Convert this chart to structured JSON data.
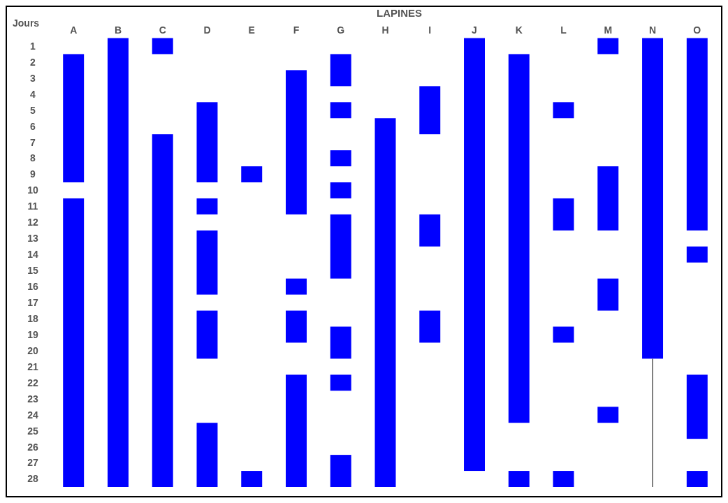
{
  "chart_data": {
    "type": "bar",
    "title": "LAPINES",
    "ylabel": "Jours",
    "categories": [
      "A",
      "B",
      "C",
      "D",
      "E",
      "F",
      "G",
      "H",
      "I",
      "J",
      "K",
      "L",
      "M",
      "N",
      "O"
    ],
    "ylim": [
      28.5,
      0.5
    ],
    "yticks": [
      1,
      2,
      3,
      4,
      5,
      6,
      7,
      8,
      9,
      10,
      11,
      12,
      13,
      14,
      15,
      16,
      17,
      18,
      19,
      20,
      21,
      22,
      23,
      24,
      25,
      26,
      27,
      28
    ],
    "series": [
      {
        "color": "#0000ff",
        "base": [
          1.5,
          0.5,
          0.5,
          4.5,
          8.5,
          2.5,
          1.5,
          5.5,
          3.5,
          0.5,
          1.5,
          4.5,
          0.5,
          0.5,
          0.5
        ],
        "values": [
          8,
          28,
          1,
          5,
          1,
          9,
          2,
          23,
          3,
          27,
          23,
          1,
          1,
          20,
          12
        ]
      },
      {
        "color": "#0000ff",
        "base": [
          10.5,
          null,
          6.5,
          10.5,
          27.5,
          15.5,
          4.5,
          null,
          11.5,
          null,
          27.5,
          10.5,
          8.5,
          null,
          13.5
        ],
        "values": [
          18,
          null,
          22,
          1,
          1,
          1,
          1,
          null,
          2,
          null,
          1,
          2,
          4,
          null,
          1
        ]
      },
      {
        "color": "#0000ff",
        "base": [
          null,
          null,
          null,
          12.5,
          null,
          17.5,
          7.5,
          null,
          17.5,
          null,
          null,
          18.5,
          15.5,
          null,
          21.5
        ],
        "values": [
          null,
          null,
          null,
          4,
          null,
          2,
          1,
          null,
          2,
          null,
          null,
          1,
          2,
          null,
          4
        ]
      },
      {
        "color": "#0000ff",
        "base": [
          null,
          null,
          null,
          17.5,
          null,
          21.5,
          9.5,
          null,
          null,
          null,
          null,
          27.5,
          23.5,
          null,
          27.5
        ],
        "values": [
          null,
          null,
          null,
          3,
          null,
          7,
          1,
          null,
          null,
          null,
          null,
          1,
          1,
          null,
          1
        ]
      },
      {
        "color": "#0000ff",
        "base": [
          null,
          null,
          null,
          24.5,
          null,
          null,
          11.5,
          null,
          null,
          null,
          null,
          null,
          null,
          null,
          null
        ],
        "values": [
          null,
          null,
          null,
          4,
          null,
          null,
          4,
          null,
          null,
          null,
          null,
          null,
          null,
          null,
          null
        ]
      },
      {
        "color": "#0000ff",
        "base": [
          null,
          null,
          null,
          null,
          null,
          null,
          18.5,
          null,
          null,
          null,
          null,
          null,
          null,
          null,
          null
        ],
        "values": [
          null,
          null,
          null,
          null,
          null,
          null,
          2,
          null,
          null,
          null,
          null,
          null,
          null,
          null,
          null
        ]
      },
      {
        "color": "#0000ff",
        "base": [
          null,
          null,
          null,
          null,
          null,
          null,
          21.5,
          null,
          null,
          null,
          null,
          null,
          null,
          null,
          null
        ],
        "values": [
          null,
          null,
          null,
          null,
          null,
          null,
          1,
          null,
          null,
          null,
          null,
          null,
          null,
          null,
          null
        ]
      },
      {
        "color": "#0000ff",
        "base": [
          null,
          null,
          null,
          null,
          null,
          null,
          26.5,
          null,
          null,
          null,
          null,
          null,
          null,
          null,
          null
        ],
        "values": [
          null,
          null,
          null,
          null,
          null,
          null,
          2,
          null,
          null,
          null,
          null,
          null,
          null,
          null,
          null
        ]
      },
      {
        "type": "line",
        "color": "#555555",
        "x": [
          "N",
          "N"
        ],
        "values": [
          20.5,
          28.5
        ]
      }
    ]
  }
}
